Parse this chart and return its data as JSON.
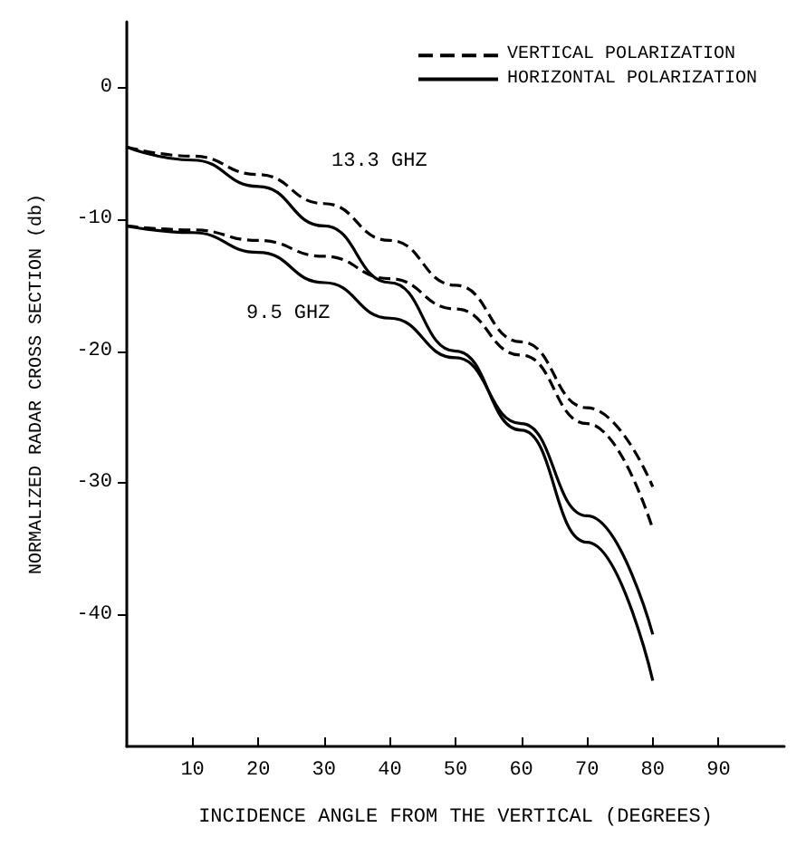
{
  "chart_data": {
    "type": "line",
    "xlabel": "INCIDENCE ANGLE FROM THE VERTICAL (DEGREES)",
    "ylabel": "NORMALIZED RADAR CROSS SECTION (db)",
    "x": [
      0,
      10,
      20,
      30,
      40,
      50,
      60,
      70,
      80
    ],
    "series": [
      {
        "name": "VERTICAL POLARIZATION",
        "color": "#000000",
        "line_style": "dashed",
        "values": [
          -4.5,
          -5.2,
          -6.6,
          -8.8,
          -11.6,
          -15,
          -19.3,
          -24.3,
          -30.3
        ]
      },
      {
        "color": "#000000",
        "line_style": "dashed",
        "values": [
          -10.5,
          -10.8,
          -11.6,
          -12.8,
          -14.5,
          -16.8,
          -20.3,
          -25.5,
          -33.5
        ]
      },
      {
        "name": "HORIZONTAL POLARIZATION",
        "color": "#000000",
        "line_style": "solid",
        "values": [
          -4.5,
          -5.5,
          -7.5,
          -10.5,
          -14.8,
          -20,
          -26,
          -34.5,
          -45
        ]
      },
      {
        "color": "#000000",
        "line_style": "solid",
        "values": [
          -10.5,
          -11,
          -12.5,
          -14.8,
          -17.5,
          -20.5,
          -25.5,
          -32.5,
          -41.5
        ]
      }
    ],
    "annotations": [
      "13.3 GHZ",
      "9.5 GHZ"
    ],
    "xlim": [
      0,
      100
    ],
    "xticks": [
      10,
      20,
      30,
      40,
      50,
      60,
      70,
      80,
      90
    ],
    "ylim": [
      -50,
      5
    ],
    "yticks": [
      -40,
      -30,
      -20,
      -10,
      0
    ],
    "grid": false,
    "legend": "top right",
    "marker": "none"
  }
}
